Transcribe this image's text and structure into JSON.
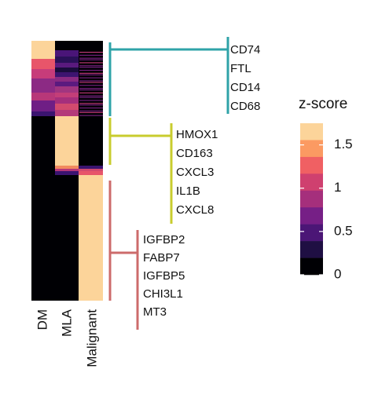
{
  "chart_data": {
    "type": "heatmap",
    "title": "",
    "columns": [
      "DM",
      "MLA",
      "Malignant"
    ],
    "legend": {
      "title": "z-score",
      "ticks": [
        {
          "label": "1.5",
          "value": 1.5
        },
        {
          "label": "1",
          "value": 1.0
        },
        {
          "label": "0.5",
          "value": 0.5
        },
        {
          "label": "0",
          "value": 0.0
        }
      ],
      "range": [
        0,
        1.75
      ],
      "position": "right"
    },
    "gene_groups": [
      {
        "name": "DM",
        "color": "#2fa3a8",
        "genes": [
          "CD74",
          "FTL",
          "CD14",
          "CD68"
        ]
      },
      {
        "name": "MLA",
        "color": "#c8cc2e",
        "genes": [
          "HMOX1",
          "CD163",
          "CXCL3",
          "IL1B",
          "CXCL8"
        ]
      },
      {
        "name": "Malignant",
        "color": "#cc6b6b",
        "genes": [
          "IGFBP2",
          "FABP7",
          "IGFBP5",
          "CHI3L1",
          "MT3"
        ]
      }
    ],
    "approximate_block_levels": {
      "rows_DM_markers": {
        "DM": "high (0.6–1.75)",
        "MLA": "mixed (0–1.2)",
        "Malignant": "mostly 0, sparse 0.8"
      },
      "rows_MLA_markers": {
        "DM": 0,
        "MLA": 1.75,
        "Malignant": 0
      },
      "rows_Malignant_markers": {
        "DM": 0,
        "MLA": 0,
        "Malignant": 1.75
      }
    },
    "colormap": [
      "#000004",
      "#1c1044",
      "#4f127b",
      "#812581",
      "#b5367a",
      "#e55064",
      "#fb8761",
      "#fec287",
      "#fcdca0"
    ]
  }
}
